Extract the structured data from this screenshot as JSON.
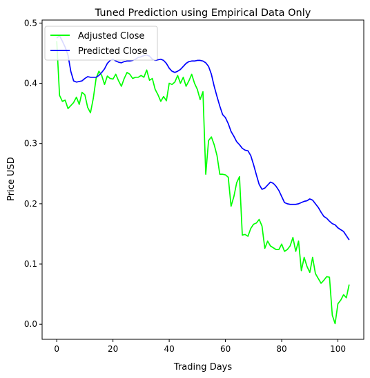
{
  "chart_data": {
    "type": "line",
    "title": "Tuned Prediction using Empirical Data Only",
    "xlabel": "Trading Days",
    "ylabel": "Price USD",
    "xlim": [
      -5.2,
      109.2
    ],
    "ylim": [
      -0.025,
      0.505
    ],
    "xticks": [
      0,
      20,
      40,
      60,
      80,
      100
    ],
    "yticks": [
      0.0,
      0.1,
      0.2,
      0.3,
      0.4,
      0.5
    ],
    "xtick_labels": [
      "0",
      "20",
      "40",
      "60",
      "80",
      "100"
    ],
    "ytick_labels": [
      "0.0",
      "0.1",
      "0.2",
      "0.3",
      "0.4",
      "0.5"
    ],
    "legend_position": "top-left",
    "grid": false,
    "series": [
      {
        "name": "Adjusted Close",
        "color": "#00ff00",
        "x": [
          0,
          1,
          2,
          3,
          4,
          5,
          6,
          7,
          8,
          9,
          10,
          11,
          12,
          13,
          14,
          15,
          16,
          17,
          18,
          19,
          20,
          21,
          22,
          23,
          24,
          25,
          26,
          27,
          28,
          29,
          30,
          31,
          32,
          33,
          34,
          35,
          36,
          37,
          38,
          39,
          40,
          41,
          42,
          43,
          44,
          45,
          46,
          47,
          48,
          49,
          50,
          51,
          52,
          53,
          54,
          55,
          56,
          57,
          58,
          59,
          60,
          61,
          62,
          63,
          64,
          65,
          66,
          67,
          68,
          69,
          70,
          71,
          72,
          73,
          74,
          75,
          76,
          77,
          78,
          79,
          80,
          81,
          82,
          83,
          84,
          85,
          86,
          87,
          88,
          89,
          90,
          91,
          92,
          93,
          94,
          95,
          96,
          97,
          98,
          99,
          100,
          101,
          102,
          103,
          104
        ],
        "y": [
          0.47,
          0.38,
          0.37,
          0.372,
          0.358,
          0.363,
          0.368,
          0.377,
          0.365,
          0.385,
          0.381,
          0.36,
          0.351,
          0.375,
          0.408,
          0.42,
          0.413,
          0.398,
          0.412,
          0.408,
          0.407,
          0.415,
          0.404,
          0.395,
          0.408,
          0.418,
          0.415,
          0.408,
          0.41,
          0.41,
          0.413,
          0.41,
          0.422,
          0.405,
          0.408,
          0.39,
          0.381,
          0.37,
          0.378,
          0.371,
          0.4,
          0.398,
          0.402,
          0.413,
          0.4,
          0.41,
          0.395,
          0.404,
          0.415,
          0.4,
          0.39,
          0.373,
          0.386,
          0.249,
          0.305,
          0.311,
          0.298,
          0.28,
          0.249,
          0.249,
          0.248,
          0.244,
          0.196,
          0.212,
          0.235,
          0.245,
          0.148,
          0.149,
          0.146,
          0.159,
          0.166,
          0.168,
          0.174,
          0.163,
          0.126,
          0.138,
          0.13,
          0.127,
          0.124,
          0.124,
          0.133,
          0.121,
          0.124,
          0.13,
          0.144,
          0.121,
          0.138,
          0.089,
          0.111,
          0.096,
          0.086,
          0.111,
          0.084,
          0.076,
          0.068,
          0.073,
          0.079,
          0.078,
          0.015,
          0.001,
          0.034,
          0.04,
          0.049,
          0.044,
          0.066
        ]
      },
      {
        "name": "Predicted Close",
        "color": "#0000ff",
        "x": [
          0,
          1,
          2,
          3,
          4,
          5,
          6,
          7,
          8,
          9,
          10,
          11,
          12,
          13,
          14,
          15,
          16,
          17,
          18,
          19,
          20,
          21,
          22,
          23,
          24,
          25,
          26,
          27,
          28,
          29,
          30,
          31,
          32,
          33,
          34,
          35,
          36,
          37,
          38,
          39,
          40,
          41,
          42,
          43,
          44,
          45,
          46,
          47,
          48,
          49,
          50,
          51,
          52,
          53,
          54,
          55,
          56,
          57,
          58,
          59,
          60,
          61,
          62,
          63,
          64,
          65,
          66,
          67,
          68,
          69,
          70,
          71,
          72,
          73,
          74,
          75,
          76,
          77,
          78,
          79,
          80,
          81,
          82,
          83,
          84,
          85,
          86,
          87,
          88,
          89,
          90,
          91,
          92,
          93,
          94,
          95,
          96,
          97,
          98,
          99,
          100,
          101,
          102,
          103,
          104
        ],
        "y": [
          0.475,
          0.479,
          0.47,
          0.46,
          0.447,
          0.42,
          0.404,
          0.402,
          0.403,
          0.404,
          0.408,
          0.411,
          0.41,
          0.41,
          0.41,
          0.413,
          0.418,
          0.424,
          0.433,
          0.438,
          0.44,
          0.437,
          0.435,
          0.434,
          0.436,
          0.437,
          0.437,
          0.438,
          0.44,
          0.443,
          0.444,
          0.446,
          0.447,
          0.445,
          0.44,
          0.438,
          0.439,
          0.44,
          0.438,
          0.433,
          0.425,
          0.42,
          0.418,
          0.42,
          0.423,
          0.428,
          0.433,
          0.436,
          0.437,
          0.437,
          0.438,
          0.438,
          0.437,
          0.434,
          0.428,
          0.415,
          0.395,
          0.378,
          0.362,
          0.348,
          0.343,
          0.333,
          0.32,
          0.312,
          0.303,
          0.298,
          0.292,
          0.289,
          0.288,
          0.28,
          0.265,
          0.248,
          0.232,
          0.224,
          0.226,
          0.231,
          0.236,
          0.234,
          0.229,
          0.222,
          0.212,
          0.202,
          0.2,
          0.199,
          0.199,
          0.199,
          0.2,
          0.202,
          0.204,
          0.205,
          0.208,
          0.206,
          0.2,
          0.194,
          0.186,
          0.179,
          0.176,
          0.171,
          0.167,
          0.165,
          0.16,
          0.157,
          0.154,
          0.147,
          0.14
        ]
      }
    ]
  }
}
